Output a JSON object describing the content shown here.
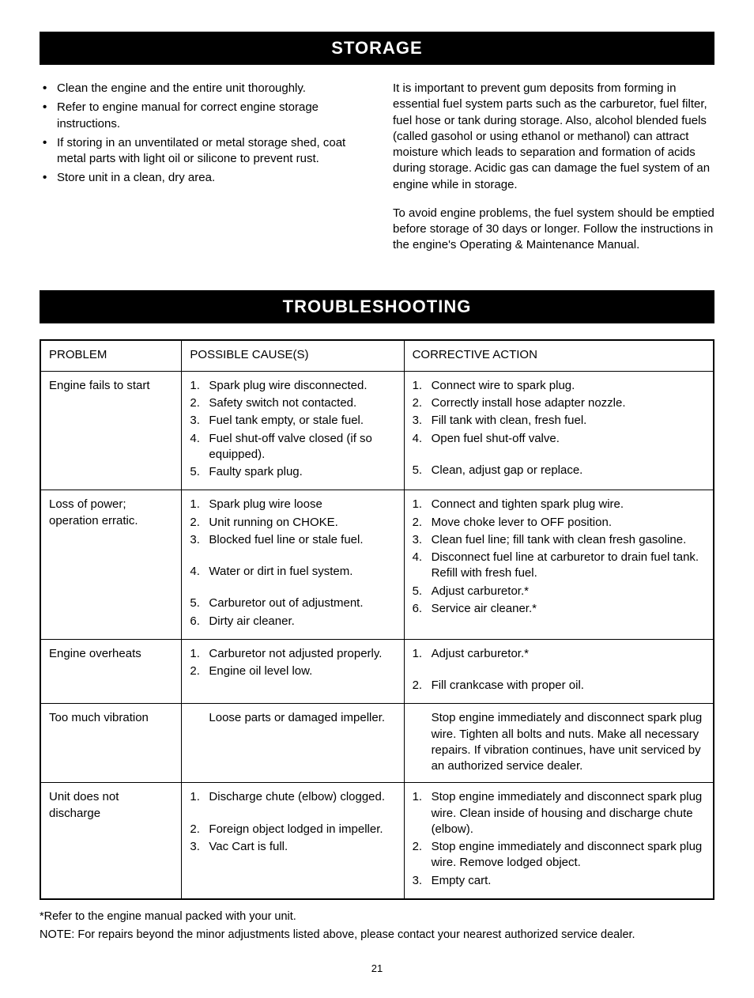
{
  "storage": {
    "title": "STORAGE",
    "bullets": [
      "Clean the engine and the entire unit thoroughly.",
      "Refer to engine manual for correct engine storage instructions.",
      "If storing in an unventilated or metal storage shed, coat metal parts with light oil or silicone to prevent rust.",
      "Store unit in a clean, dry area."
    ],
    "para1": "It is important to prevent gum deposits from forming in essential fuel system parts such as the carburetor, fuel filter, fuel hose or tank during storage. Also, alcohol blended fuels (called gasohol or using ethanol or methanol) can attract moisture which leads to separation and formation of acids during storage. Acidic gas can damage the fuel system of an engine while in storage.",
    "para2": "To avoid engine problems, the fuel system should be emptied before storage of 30 days or longer. Follow the instructions in the engine's Operating & Maintenance Manual."
  },
  "troubleshooting": {
    "title": "TROUBLESHOOTING",
    "headers": {
      "problem": "PROBLEM",
      "cause": "POSSIBLE CAUSE(S)",
      "action": "CORRECTIVE ACTION"
    },
    "rows": [
      {
        "problem": "Engine fails to start",
        "causes": [
          "Spark plug wire disconnected.",
          "Safety switch not contacted.",
          "Fuel tank empty, or stale fuel.",
          "Fuel shut-off valve closed (if so equipped).",
          "Faulty spark plug."
        ],
        "actions": [
          "Connect wire to spark plug.",
          "Correctly install hose adapter nozzle.",
          "Fill tank with clean, fresh fuel.",
          "Open fuel shut-off valve.\n",
          "Clean, adjust gap or replace."
        ]
      },
      {
        "problem": "Loss of power; operation erratic.",
        "causes": [
          "Spark plug wire loose",
          "Unit running on CHOKE.",
          "Blocked fuel line or stale fuel.\n",
          "Water or dirt in fuel system.\n",
          "Carburetor out of adjustment.",
          "Dirty air cleaner."
        ],
        "actions": [
          "Connect and tighten spark plug wire.",
          "Move choke lever to OFF position.",
          "Clean fuel line; fill tank with clean fresh gasoline.",
          "Disconnect fuel line at carburetor to drain fuel tank. Refill with fresh fuel.",
          "Adjust carburetor.*",
          "Service air cleaner.*"
        ]
      },
      {
        "problem": "Engine overheats",
        "causes": [
          "Carburetor not adjusted properly.",
          "Engine oil level low."
        ],
        "actions": [
          "Adjust carburetor.*\n",
          "Fill crankcase with proper oil."
        ]
      },
      {
        "problem": "Too much vibration",
        "causes_plain": "Loose parts or damaged impeller.",
        "actions_plain": "Stop engine immediately and disconnect spark plug wire. Tighten all bolts and nuts. Make all necessary repairs. If vibration continues, have unit serviced by an authorized service dealer."
      },
      {
        "problem": "Unit does not discharge",
        "causes": [
          "Discharge chute (elbow) clogged.\n",
          "Foreign object lodged in impeller.",
          "Vac Cart is full."
        ],
        "actions": [
          "Stop engine immediately and disconnect spark plug wire. Clean inside of housing and discharge chute (elbow).",
          "Stop engine immediately and disconnect spark plug wire. Remove lodged object.",
          "Empty cart."
        ]
      }
    ],
    "footnote1": "*Refer to the engine manual packed with your unit.",
    "footnote2": "NOTE:  For repairs beyond the minor adjustments listed above, please contact your nearest authorized service dealer."
  },
  "page_number": "21"
}
